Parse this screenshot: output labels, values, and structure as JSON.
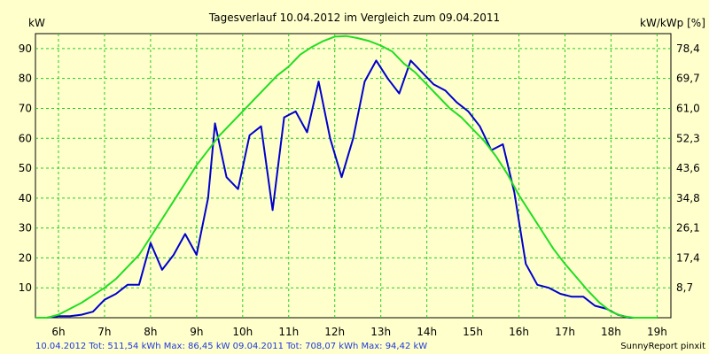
{
  "chart_data": {
    "type": "line",
    "title": "Tagesverlauf 10.04.2012 im Vergleich zum 09.04.2011",
    "ylabel_left": "kW",
    "ylabel_right": "kW/kWp [%]",
    "xlim": [
      5.5,
      19.3
    ],
    "ylim": [
      0,
      95
    ],
    "x_ticks": [
      6,
      7,
      8,
      9,
      10,
      11,
      12,
      13,
      14,
      15,
      16,
      17,
      18,
      19
    ],
    "x_tick_labels": [
      "6h",
      "7h",
      "8h",
      "9h",
      "10h",
      "11h",
      "12h",
      "13h",
      "14h",
      "15h",
      "16h",
      "17h",
      "18h",
      "19h"
    ],
    "y_ticks_left": [
      10,
      20,
      30,
      40,
      50,
      60,
      70,
      80,
      90
    ],
    "y_ticks_right": [
      "8,7",
      "17,4",
      "26,1",
      "34,8",
      "43,6",
      "52,3",
      "61,0",
      "69,7",
      "78,4"
    ],
    "grid": true,
    "series": [
      {
        "name": "10.04.2012",
        "color": "#0000CC",
        "x": [
          5.5,
          5.75,
          6.0,
          6.25,
          6.5,
          6.75,
          7.0,
          7.25,
          7.5,
          7.75,
          8.0,
          8.25,
          8.5,
          8.75,
          9.0,
          9.25,
          9.4,
          9.65,
          9.9,
          10.15,
          10.4,
          10.65,
          10.9,
          11.15,
          11.4,
          11.65,
          11.9,
          12.15,
          12.4,
          12.65,
          12.9,
          13.15,
          13.4,
          13.65,
          13.9,
          14.15,
          14.4,
          14.65,
          14.9,
          15.15,
          15.4,
          15.65,
          15.9,
          16.15,
          16.4,
          16.65,
          16.9,
          17.15,
          17.4,
          17.65,
          17.9,
          18.15,
          18.4,
          18.65
        ],
        "y": [
          0,
          0,
          0.5,
          0.5,
          1,
          2,
          6,
          8,
          11,
          11,
          25,
          16,
          21,
          28,
          21,
          40,
          65,
          47,
          43,
          61,
          64,
          36,
          67,
          69,
          62,
          79,
          60,
          47,
          60,
          79,
          86,
          80,
          75,
          86,
          82,
          78,
          76,
          72,
          69,
          64,
          56,
          58,
          42,
          18,
          11,
          10,
          8,
          7,
          7,
          4,
          3,
          1,
          0,
          0
        ]
      },
      {
        "name": "09.04.2011",
        "color": "#22DD22",
        "x": [
          5.5,
          5.75,
          6.0,
          6.25,
          6.5,
          6.75,
          7.0,
          7.25,
          7.5,
          7.75,
          8.0,
          8.25,
          8.5,
          8.75,
          9.0,
          9.25,
          9.5,
          9.75,
          10.0,
          10.25,
          10.5,
          10.75,
          11.0,
          11.25,
          11.5,
          11.75,
          12.0,
          12.25,
          12.5,
          12.75,
          13.0,
          13.25,
          13.5,
          13.75,
          14.0,
          14.25,
          14.5,
          14.75,
          15.0,
          15.25,
          15.5,
          15.75,
          16.0,
          16.25,
          16.5,
          16.75,
          17.0,
          17.25,
          17.5,
          17.75,
          18.0,
          18.25,
          18.5,
          18.75,
          19.0
        ],
        "y": [
          0,
          0,
          1,
          3,
          5,
          7.5,
          10,
          13,
          17,
          21,
          27,
          33,
          39,
          45,
          51,
          56,
          61,
          65,
          69,
          73,
          77,
          81,
          84,
          88,
          90.5,
          92.5,
          94,
          94.2,
          93.5,
          92.5,
          91,
          89,
          85,
          82,
          78,
          74,
          70,
          67,
          63,
          59,
          54,
          48,
          41,
          35,
          29,
          23,
          18,
          13.5,
          9,
          5,
          2,
          0.5,
          0,
          0,
          0
        ]
      }
    ],
    "footer": {
      "left": "10.04.2012 Tot: 511,54 kWh Max: 86,45 kW 09.04.2011 Tot: 708,07 kWh Max: 94,42 kW",
      "right": "SunnyReport pinxit"
    }
  }
}
